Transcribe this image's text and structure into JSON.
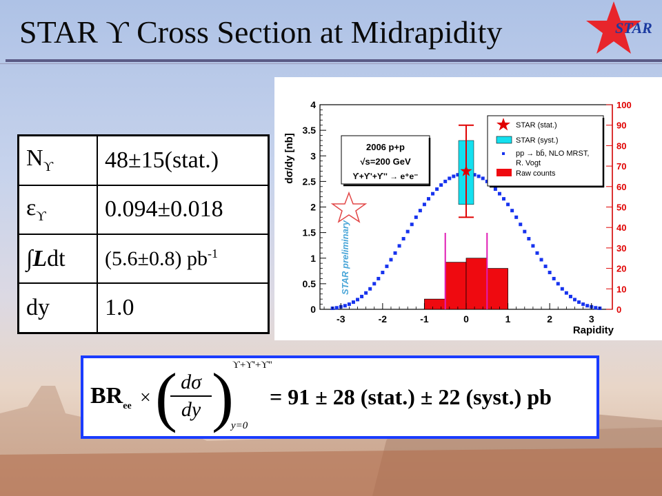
{
  "slide": {
    "title": "STAR ϒ Cross Section at Midrapidity",
    "logo_text": "STAR",
    "colors": {
      "title_rule": "#5b5b86",
      "logo_star": "#e8252b",
      "formula_border": "#1a3cff"
    }
  },
  "table": {
    "rows": [
      {
        "key": "N",
        "key_sub": "ϒ",
        "value": "48±15(stat.)"
      },
      {
        "key": "ε",
        "key_sub": "ϒ",
        "value": "0.094±0.018"
      },
      {
        "key_integral": "∫",
        "key_main": "L",
        "key_tail": "dt",
        "value": "(5.6±0.8) pb",
        "value_sup": "-1"
      },
      {
        "key": "dy",
        "value": "1.0"
      }
    ]
  },
  "plot": {
    "ylabel": "dσ/dy [nb]",
    "xlabel": "Rapidity",
    "legend": [
      "STAR (stat.)",
      "STAR (syst.)",
      "pp → bb̄, NLO MRST,",
      "R. Vogt",
      "Raw counts"
    ],
    "info_box": [
      "2006 p+p",
      "√s=200 GeV",
      "ϒ+ϒ'+ϒ'' → e⁺e⁻"
    ],
    "watermark": "STAR preliminary",
    "x_ticks": [
      "-3",
      "-2",
      "-1",
      "0",
      "1",
      "2",
      "3"
    ],
    "y_ticks": [
      "0",
      "0.5",
      "1",
      "1.5",
      "2",
      "2.5",
      "3",
      "3.5",
      "4"
    ],
    "y2_ticks": [
      "0",
      "10",
      "20",
      "30",
      "40",
      "50",
      "60",
      "70",
      "80",
      "90",
      "100"
    ]
  },
  "chart_data": {
    "type": "scatter",
    "xlabel": "Rapidity",
    "ylabel": "dσ/dy [nb]",
    "xlim": [
      -3.5,
      3.5
    ],
    "ylim": [
      0,
      4
    ],
    "y2lim": [
      0,
      100
    ],
    "grid": false,
    "legend_position": "top-right",
    "star_point": {
      "x": 0,
      "y": 2.7,
      "stat_low": 1.8,
      "stat_high": 3.6,
      "syst_low": 2.05,
      "syst_high": 3.3
    },
    "series": [
      {
        "name": "pp → bb̄, NLO MRST, R. Vogt",
        "x": [
          -3.2,
          -3.1,
          -3.0,
          -2.9,
          -2.8,
          -2.7,
          -2.6,
          -2.5,
          -2.4,
          -2.3,
          -2.2,
          -2.1,
          -2.0,
          -1.9,
          -1.8,
          -1.7,
          -1.6,
          -1.5,
          -1.4,
          -1.3,
          -1.2,
          -1.1,
          -1.0,
          -0.9,
          -0.8,
          -0.7,
          -0.6,
          -0.5,
          -0.4,
          -0.3,
          -0.2,
          -0.1,
          0.0,
          0.1,
          0.2,
          0.3,
          0.4,
          0.5,
          0.6,
          0.7,
          0.8,
          0.9,
          1.0,
          1.1,
          1.2,
          1.3,
          1.4,
          1.5,
          1.6,
          1.7,
          1.8,
          1.9,
          2.0,
          2.1,
          2.2,
          2.3,
          2.4,
          2.5,
          2.6,
          2.7,
          2.8,
          2.9,
          3.0,
          3.1,
          3.2
        ],
        "y": [
          0.02,
          0.03,
          0.05,
          0.07,
          0.1,
          0.14,
          0.19,
          0.25,
          0.32,
          0.4,
          0.5,
          0.6,
          0.72,
          0.84,
          0.97,
          1.1,
          1.24,
          1.38,
          1.52,
          1.66,
          1.8,
          1.93,
          2.05,
          2.16,
          2.26,
          2.35,
          2.43,
          2.5,
          2.56,
          2.6,
          2.63,
          2.65,
          2.66,
          2.65,
          2.63,
          2.6,
          2.56,
          2.5,
          2.43,
          2.35,
          2.26,
          2.16,
          2.05,
          1.93,
          1.8,
          1.66,
          1.52,
          1.38,
          1.24,
          1.1,
          0.97,
          0.84,
          0.72,
          0.6,
          0.5,
          0.4,
          0.32,
          0.25,
          0.19,
          0.14,
          0.1,
          0.07,
          0.05,
          0.03,
          0.02
        ]
      },
      {
        "name": "Raw counts",
        "bins": [
          {
            "x0": -1.0,
            "x1": -0.5,
            "y": 5
          },
          {
            "x0": -0.5,
            "x1": 0.0,
            "y": 23
          },
          {
            "x0": 0.0,
            "x1": 0.5,
            "y": 25
          },
          {
            "x0": 0.5,
            "x1": 1.0,
            "y": 20
          }
        ]
      }
    ],
    "integration_lines_x": [
      -0.5,
      0.5
    ]
  },
  "formula": {
    "br": "BR",
    "br_sub": "ee",
    "times": "×",
    "num": "dσ",
    "den": "dy",
    "sup": "ϒ+ϒ'+ϒ''",
    "sub": "y=0",
    "rhs": "= 91 ± 28   (stat.) ± 22   (syst.)   pb"
  }
}
